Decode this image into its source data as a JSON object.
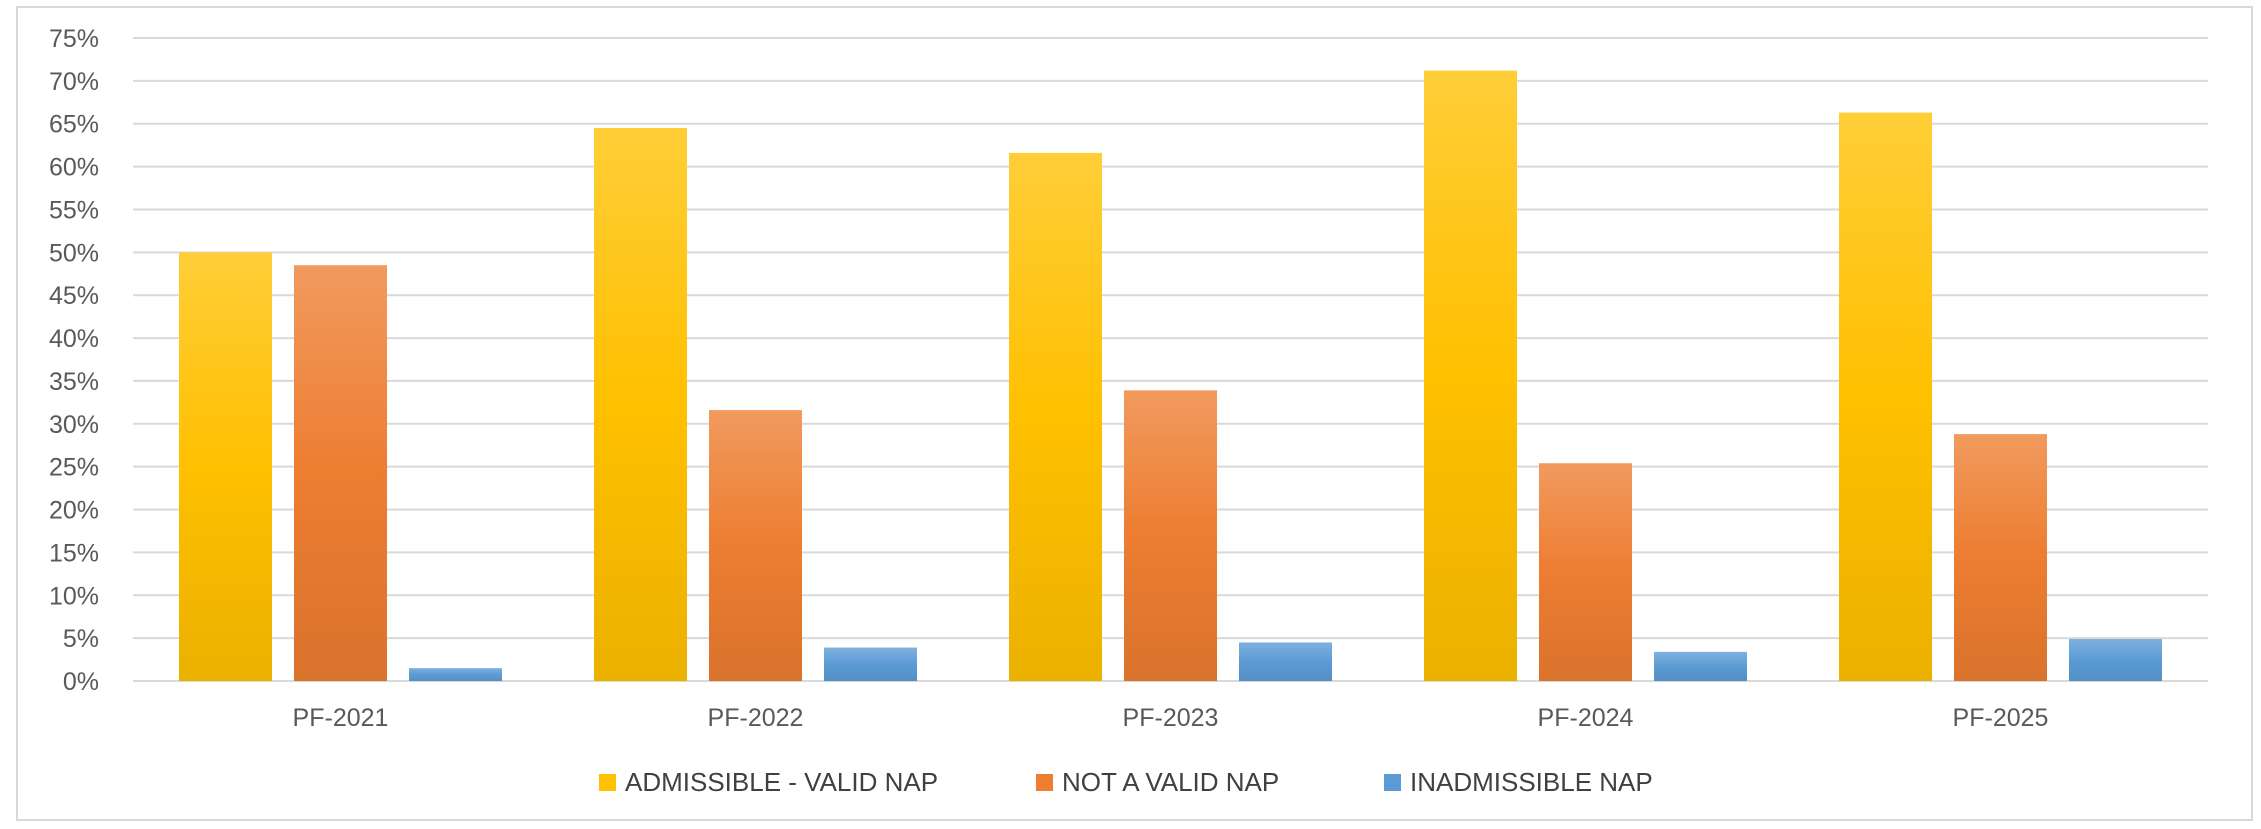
{
  "chart_data": {
    "type": "bar",
    "categories": [
      "PF-2021",
      "PF-2022",
      "PF-2023",
      "PF-2024",
      "PF-2025"
    ],
    "series": [
      {
        "name": "ADMISSIBLE - VALID NAP",
        "color": "#ffc000",
        "values": [
          50,
          64.5,
          61.6,
          71.2,
          66.3
        ]
      },
      {
        "name": "NOT A VALID NAP",
        "color": "#ed7d31",
        "values": [
          48.5,
          31.6,
          33.9,
          25.4,
          28.8
        ]
      },
      {
        "name": "INADMISSIBLE NAP",
        "color": "#5b9bd5",
        "values": [
          1.5,
          3.9,
          4.5,
          3.4,
          4.9
        ]
      }
    ],
    "y_ticks": [
      "0%",
      "5%",
      "10%",
      "15%",
      "20%",
      "25%",
      "30%",
      "35%",
      "40%",
      "45%",
      "50%",
      "55%",
      "60%",
      "65%",
      "70%",
      "75%"
    ],
    "ylim": [
      0,
      75
    ],
    "grid": true,
    "legend_position": "bottom"
  }
}
